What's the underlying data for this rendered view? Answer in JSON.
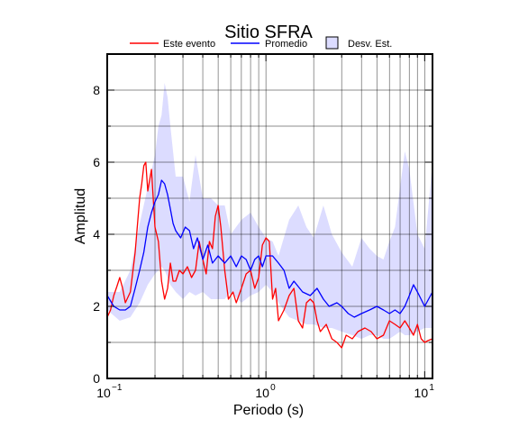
{
  "chart_data": {
    "type": "line",
    "title": "Sitio SFRA",
    "xlabel": "Periodo (s)",
    "ylabel": "Amplitud",
    "x_scale": "log",
    "xlim": [
      0.1,
      11.2
    ],
    "ylim": [
      0,
      9
    ],
    "grid": true,
    "legend_position": "top",
    "x_ticks": [
      {
        "value": 0.1,
        "base": "10",
        "exp": "−1"
      },
      {
        "value": 1,
        "base": "10",
        "exp": "0"
      },
      {
        "value": 10,
        "base": "10",
        "exp": "1"
      }
    ],
    "y_ticks": [
      {
        "value": 0,
        "label": "0"
      },
      {
        "value": 2,
        "label": "2"
      },
      {
        "value": 4,
        "label": "4"
      },
      {
        "value": 6,
        "label": "6"
      },
      {
        "value": 8,
        "label": "8"
      }
    ],
    "series": [
      {
        "name": "Este evento",
        "color": "#ff0000",
        "x": [
          0.1,
          0.105,
          0.11,
          0.115,
          0.12,
          0.125,
          0.13,
          0.14,
          0.15,
          0.16,
          0.165,
          0.17,
          0.175,
          0.18,
          0.19,
          0.2,
          0.21,
          0.22,
          0.23,
          0.24,
          0.25,
          0.26,
          0.27,
          0.285,
          0.3,
          0.32,
          0.34,
          0.36,
          0.38,
          0.4,
          0.42,
          0.44,
          0.46,
          0.48,
          0.5,
          0.52,
          0.55,
          0.58,
          0.62,
          0.65,
          0.7,
          0.75,
          0.8,
          0.85,
          0.9,
          0.95,
          1.0,
          1.05,
          1.1,
          1.15,
          1.2,
          1.3,
          1.4,
          1.5,
          1.6,
          1.7,
          1.8,
          1.9,
          2.0,
          2.1,
          2.2,
          2.4,
          2.6,
          2.8,
          3.0,
          3.2,
          3.5,
          3.8,
          4.2,
          4.6,
          5.0,
          5.5,
          6.0,
          6.5,
          7.0,
          7.5,
          8.0,
          8.5,
          9.0,
          9.5,
          10.0,
          10.5,
          11.2
        ],
        "y": [
          1.7,
          1.9,
          2.3,
          2.55,
          2.8,
          2.5,
          2.1,
          2.4,
          3.5,
          5.0,
          5.4,
          5.9,
          6.0,
          5.2,
          5.8,
          4.2,
          3.8,
          2.7,
          2.2,
          2.5,
          3.2,
          2.7,
          2.7,
          3.0,
          2.9,
          3.1,
          2.8,
          3.0,
          3.8,
          3.3,
          2.9,
          3.8,
          3.6,
          4.5,
          4.8,
          4.2,
          3.0,
          2.2,
          2.4,
          2.1,
          2.5,
          2.9,
          3.0,
          2.5,
          2.8,
          3.7,
          3.9,
          3.8,
          2.2,
          2.5,
          1.6,
          1.9,
          2.3,
          2.5,
          1.6,
          1.4,
          2.1,
          2.2,
          2.1,
          1.6,
          1.3,
          1.5,
          1.1,
          1.0,
          0.85,
          1.2,
          1.1,
          1.3,
          1.4,
          1.3,
          1.1,
          1.2,
          1.6,
          1.5,
          1.4,
          1.6,
          1.4,
          1.2,
          1.5,
          1.1,
          1.0,
          1.05,
          1.1
        ]
      },
      {
        "name": "Promedio",
        "color": "#0000ff",
        "x": [
          0.1,
          0.11,
          0.12,
          0.13,
          0.14,
          0.15,
          0.16,
          0.17,
          0.18,
          0.19,
          0.2,
          0.21,
          0.22,
          0.23,
          0.24,
          0.25,
          0.26,
          0.27,
          0.29,
          0.31,
          0.33,
          0.35,
          0.37,
          0.4,
          0.43,
          0.46,
          0.5,
          0.55,
          0.6,
          0.65,
          0.7,
          0.75,
          0.8,
          0.85,
          0.9,
          0.95,
          1.0,
          1.1,
          1.2,
          1.3,
          1.4,
          1.5,
          1.7,
          1.9,
          2.1,
          2.3,
          2.5,
          2.8,
          3.0,
          3.3,
          3.6,
          4.0,
          4.5,
          5.0,
          5.5,
          6.0,
          6.5,
          7.0,
          7.5,
          8.0,
          8.5,
          9.0,
          10.0,
          11.2
        ],
        "y": [
          2.3,
          2.0,
          1.9,
          1.9,
          2.0,
          2.5,
          3.0,
          3.5,
          4.2,
          4.6,
          4.9,
          5.1,
          5.5,
          5.4,
          5.1,
          4.7,
          4.3,
          4.1,
          3.9,
          4.2,
          4.1,
          3.6,
          3.9,
          3.3,
          3.7,
          3.2,
          3.4,
          3.2,
          3.4,
          3.1,
          3.4,
          3.3,
          3.0,
          3.3,
          3.4,
          3.1,
          3.4,
          3.4,
          3.2,
          3.0,
          2.5,
          2.7,
          2.4,
          2.3,
          2.5,
          2.2,
          2.0,
          2.1,
          2.0,
          1.8,
          1.7,
          1.8,
          1.9,
          2.0,
          1.9,
          1.8,
          1.9,
          1.8,
          2.0,
          2.3,
          2.6,
          2.4,
          2.0,
          2.4
        ]
      }
    ],
    "band": {
      "name": "Desv. Est.",
      "color": "#dcdcff",
      "edge_color": "#000000",
      "x": [
        0.1,
        0.12,
        0.14,
        0.16,
        0.18,
        0.2,
        0.21,
        0.22,
        0.23,
        0.24,
        0.25,
        0.27,
        0.3,
        0.33,
        0.36,
        0.4,
        0.45,
        0.5,
        0.55,
        0.6,
        0.7,
        0.8,
        0.9,
        1.0,
        1.1,
        1.2,
        1.4,
        1.6,
        1.8,
        2.0,
        2.3,
        2.6,
        3.0,
        3.5,
        4.0,
        4.5,
        5.0,
        5.5,
        6.0,
        6.5,
        7.0,
        7.5,
        8.0,
        9.0,
        10.0,
        11.2
      ],
      "upper": [
        2.4,
        2.4,
        3.0,
        4.3,
        5.3,
        6.2,
        7.0,
        7.3,
        8.2,
        7.8,
        7.0,
        5.6,
        5.6,
        4.9,
        6.2,
        5.0,
        5.0,
        4.8,
        4.8,
        4.0,
        4.4,
        4.6,
        4.2,
        3.9,
        3.8,
        3.4,
        4.4,
        4.8,
        4.2,
        3.9,
        4.8,
        4.0,
        3.5,
        3.1,
        3.9,
        3.6,
        3.4,
        3.3,
        3.8,
        4.2,
        5.3,
        6.3,
        5.8,
        4.0,
        3.6,
        6.0
      ],
      "lower": [
        1.9,
        1.6,
        1.7,
        2.1,
        2.6,
        2.9,
        3.0,
        3.1,
        3.0,
        2.8,
        2.6,
        2.4,
        2.2,
        2.4,
        2.3,
        2.4,
        2.2,
        2.2,
        2.2,
        2.4,
        2.1,
        2.3,
        2.4,
        2.6,
        2.4,
        2.1,
        1.7,
        1.6,
        1.5,
        1.5,
        1.4,
        1.4,
        1.3,
        1.2,
        1.1,
        1.2,
        1.2,
        1.1,
        1.1,
        1.2,
        1.3,
        1.2,
        1.2,
        1.3,
        1.4,
        1.4
      ]
    }
  }
}
